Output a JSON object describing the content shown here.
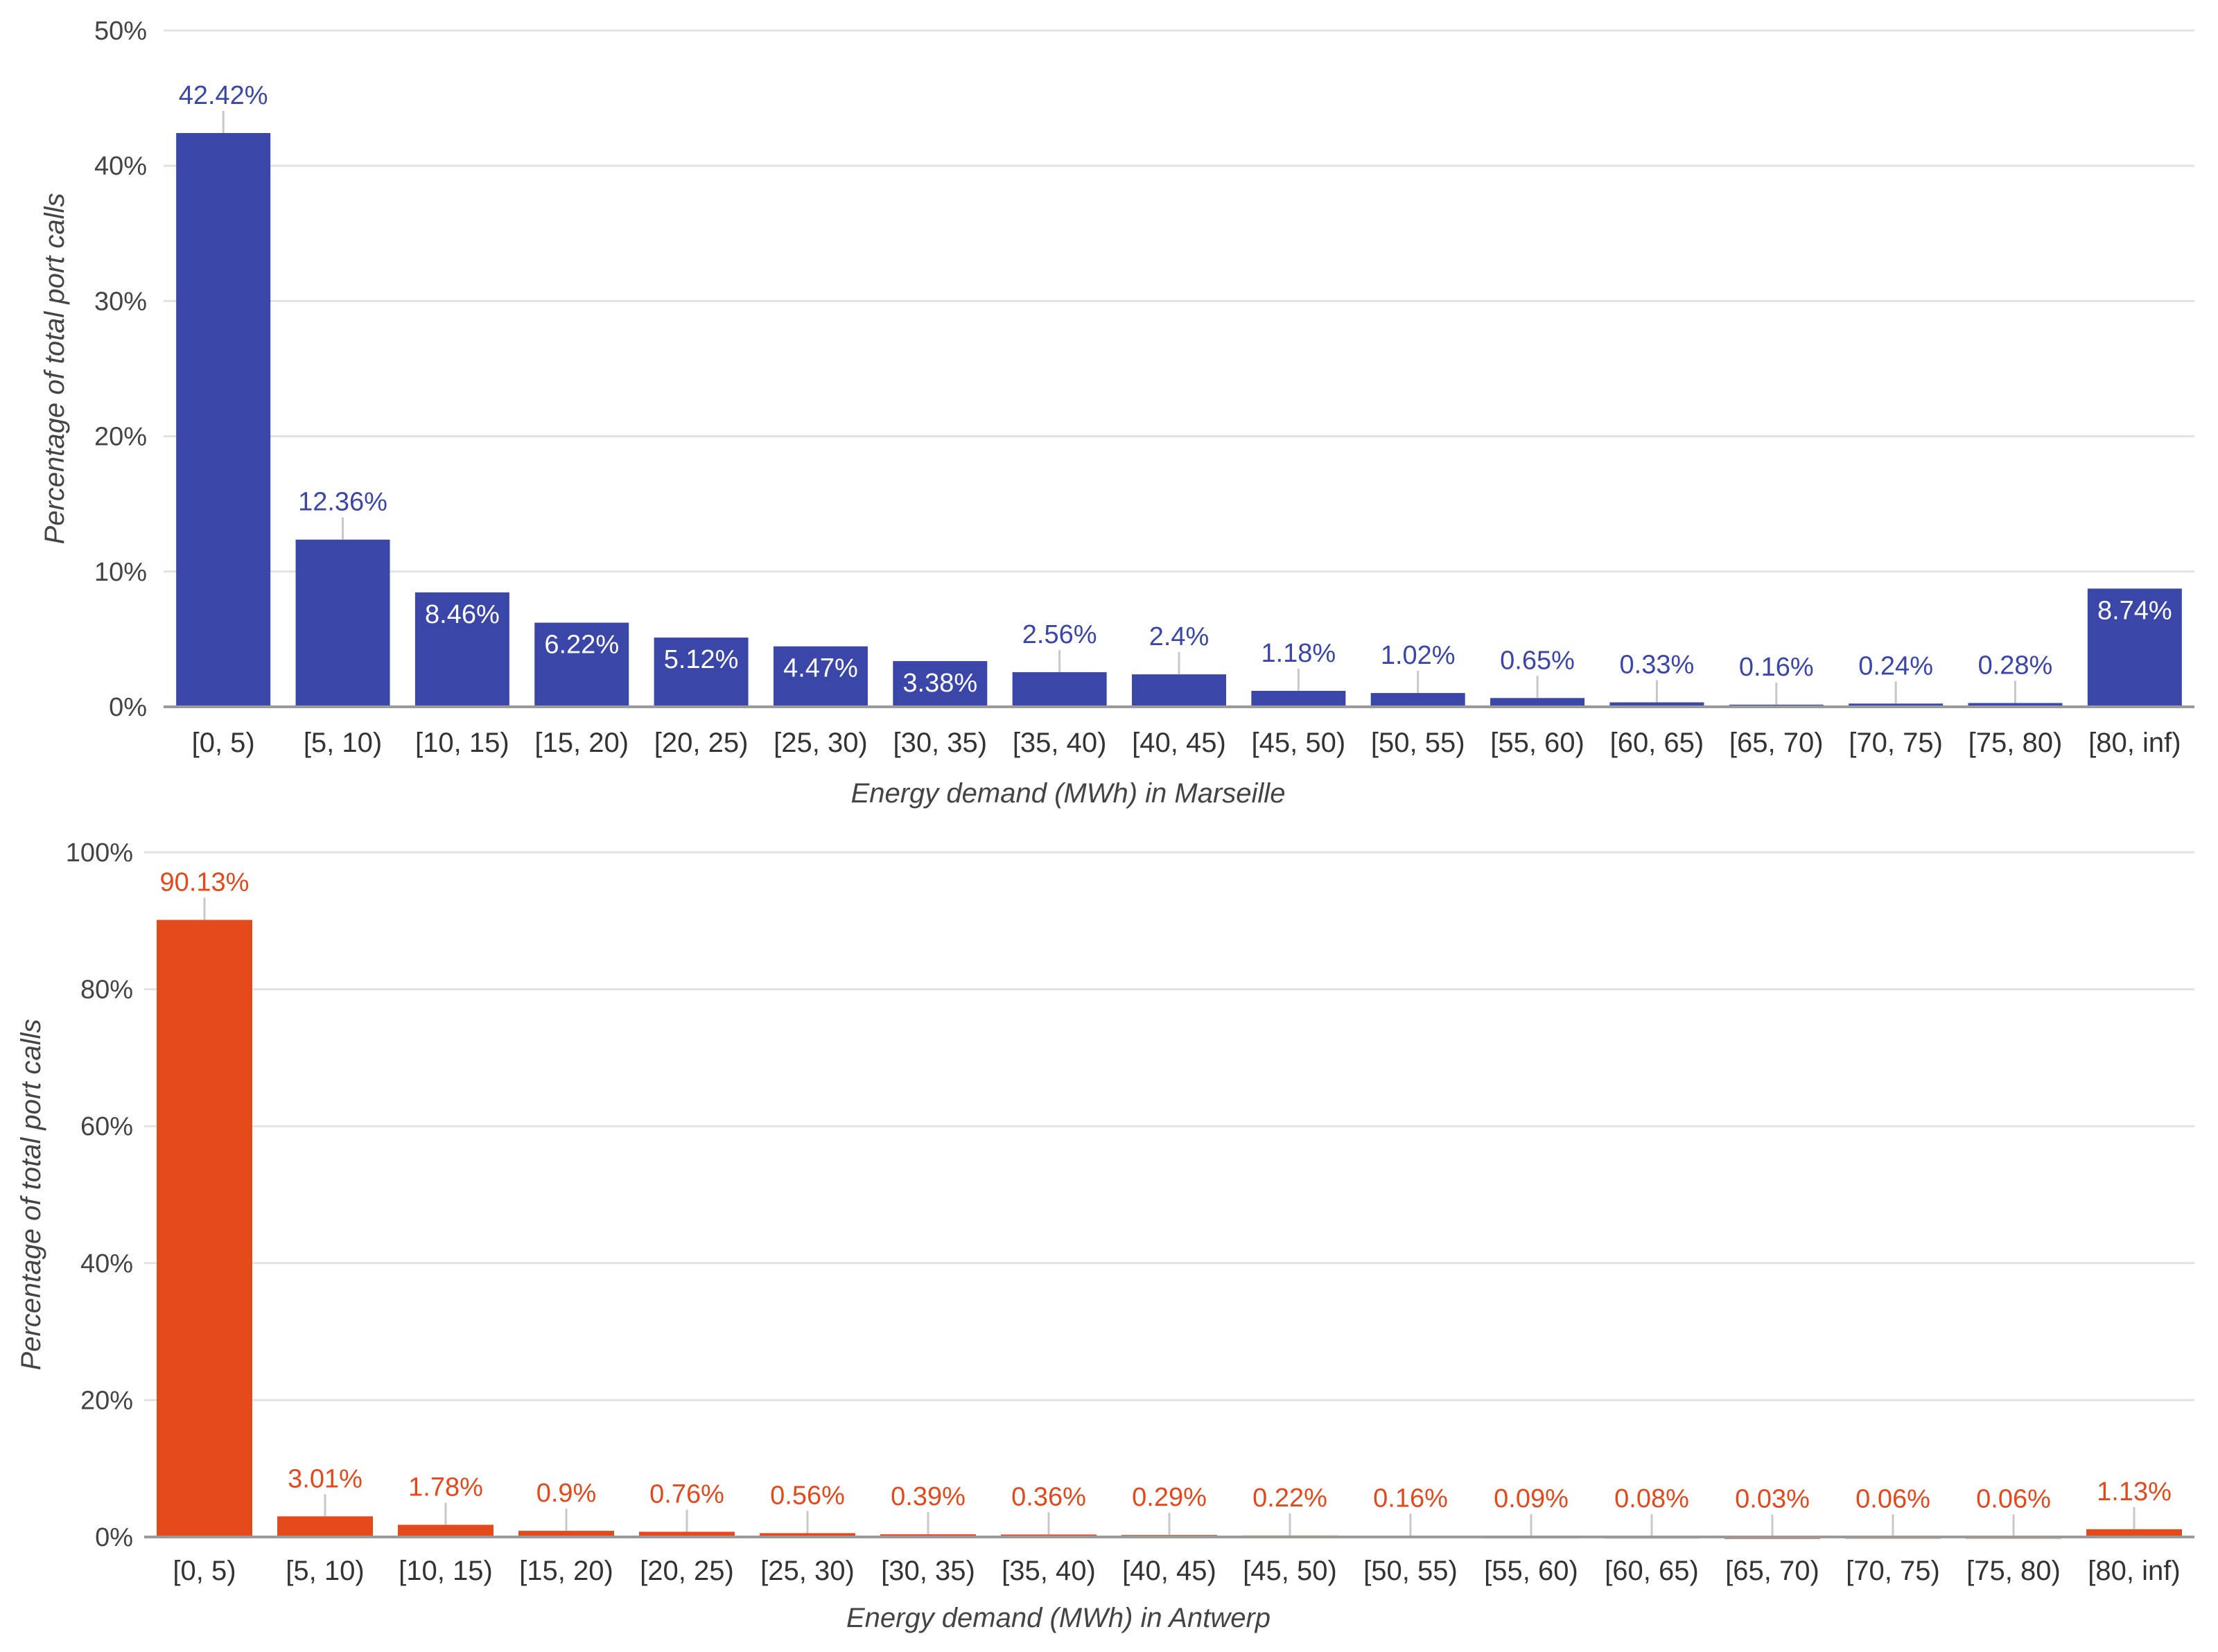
{
  "chart_data": [
    {
      "type": "bar",
      "categories": [
        "[0, 5)",
        "[5, 10)",
        "[10, 15)",
        "[15, 20)",
        "[20, 25)",
        "[25, 30)",
        "[30, 35)",
        "[35, 40)",
        "[40, 45)",
        "[45, 50)",
        "[50, 55)",
        "[55, 60)",
        "[60, 65)",
        "[65, 70)",
        "[70, 75)",
        "[75, 80)",
        "[80, inf)"
      ],
      "values": [
        42.42,
        12.36,
        8.46,
        6.22,
        5.12,
        4.47,
        3.38,
        2.56,
        2.4,
        1.18,
        1.02,
        0.65,
        0.33,
        0.16,
        0.24,
        0.28,
        8.74
      ],
      "data_labels": [
        "42.42%",
        "12.36%",
        "8.46%",
        "6.22%",
        "5.12%",
        "4.47%",
        "3.38%",
        "2.56%",
        "2.4%",
        "1.18%",
        "1.02%",
        "0.65%",
        "0.33%",
        "0.16%",
        "0.24%",
        "0.28%",
        "8.74%"
      ],
      "xlabel": "Energy demand (MWh) in Marseille",
      "ylabel": "Percentage of total port calls",
      "ylim": [
        0,
        50
      ],
      "yticks": [
        0,
        10,
        20,
        30,
        40,
        50
      ],
      "ytick_labels": [
        "0%",
        "10%",
        "20%",
        "30%",
        "40%",
        "50%"
      ],
      "color": "#3a46a8",
      "grid": true
    },
    {
      "type": "bar",
      "categories": [
        "[0, 5)",
        "[5, 10)",
        "[10, 15)",
        "[15, 20)",
        "[20, 25)",
        "[25, 30)",
        "[30, 35)",
        "[35, 40)",
        "[40, 45)",
        "[45, 50)",
        "[50, 55)",
        "[55, 60)",
        "[60, 65)",
        "[65, 70)",
        "[70, 75)",
        "[75, 80)",
        "[80, inf)"
      ],
      "values": [
        90.13,
        3.01,
        1.78,
        0.9,
        0.76,
        0.56,
        0.39,
        0.36,
        0.29,
        0.22,
        0.16,
        0.09,
        0.08,
        0.03,
        0.06,
        0.06,
        1.13
      ],
      "data_labels": [
        "90.13%",
        "3.01%",
        "1.78%",
        "0.9%",
        "0.76%",
        "0.56%",
        "0.39%",
        "0.36%",
        "0.29%",
        "0.22%",
        "0.16%",
        "0.09%",
        "0.08%",
        "0.03%",
        "0.06%",
        "0.06%",
        "1.13%"
      ],
      "xlabel": "Energy demand (MWh) in Antwerp",
      "ylabel": "Percentage of total port calls",
      "ylim": [
        0,
        100
      ],
      "yticks": [
        0,
        20,
        40,
        60,
        80,
        100
      ],
      "ytick_labels": [
        "0%",
        "20%",
        "40%",
        "60%",
        "80%",
        "100%"
      ],
      "color": "#e4491c",
      "grid": true
    }
  ]
}
